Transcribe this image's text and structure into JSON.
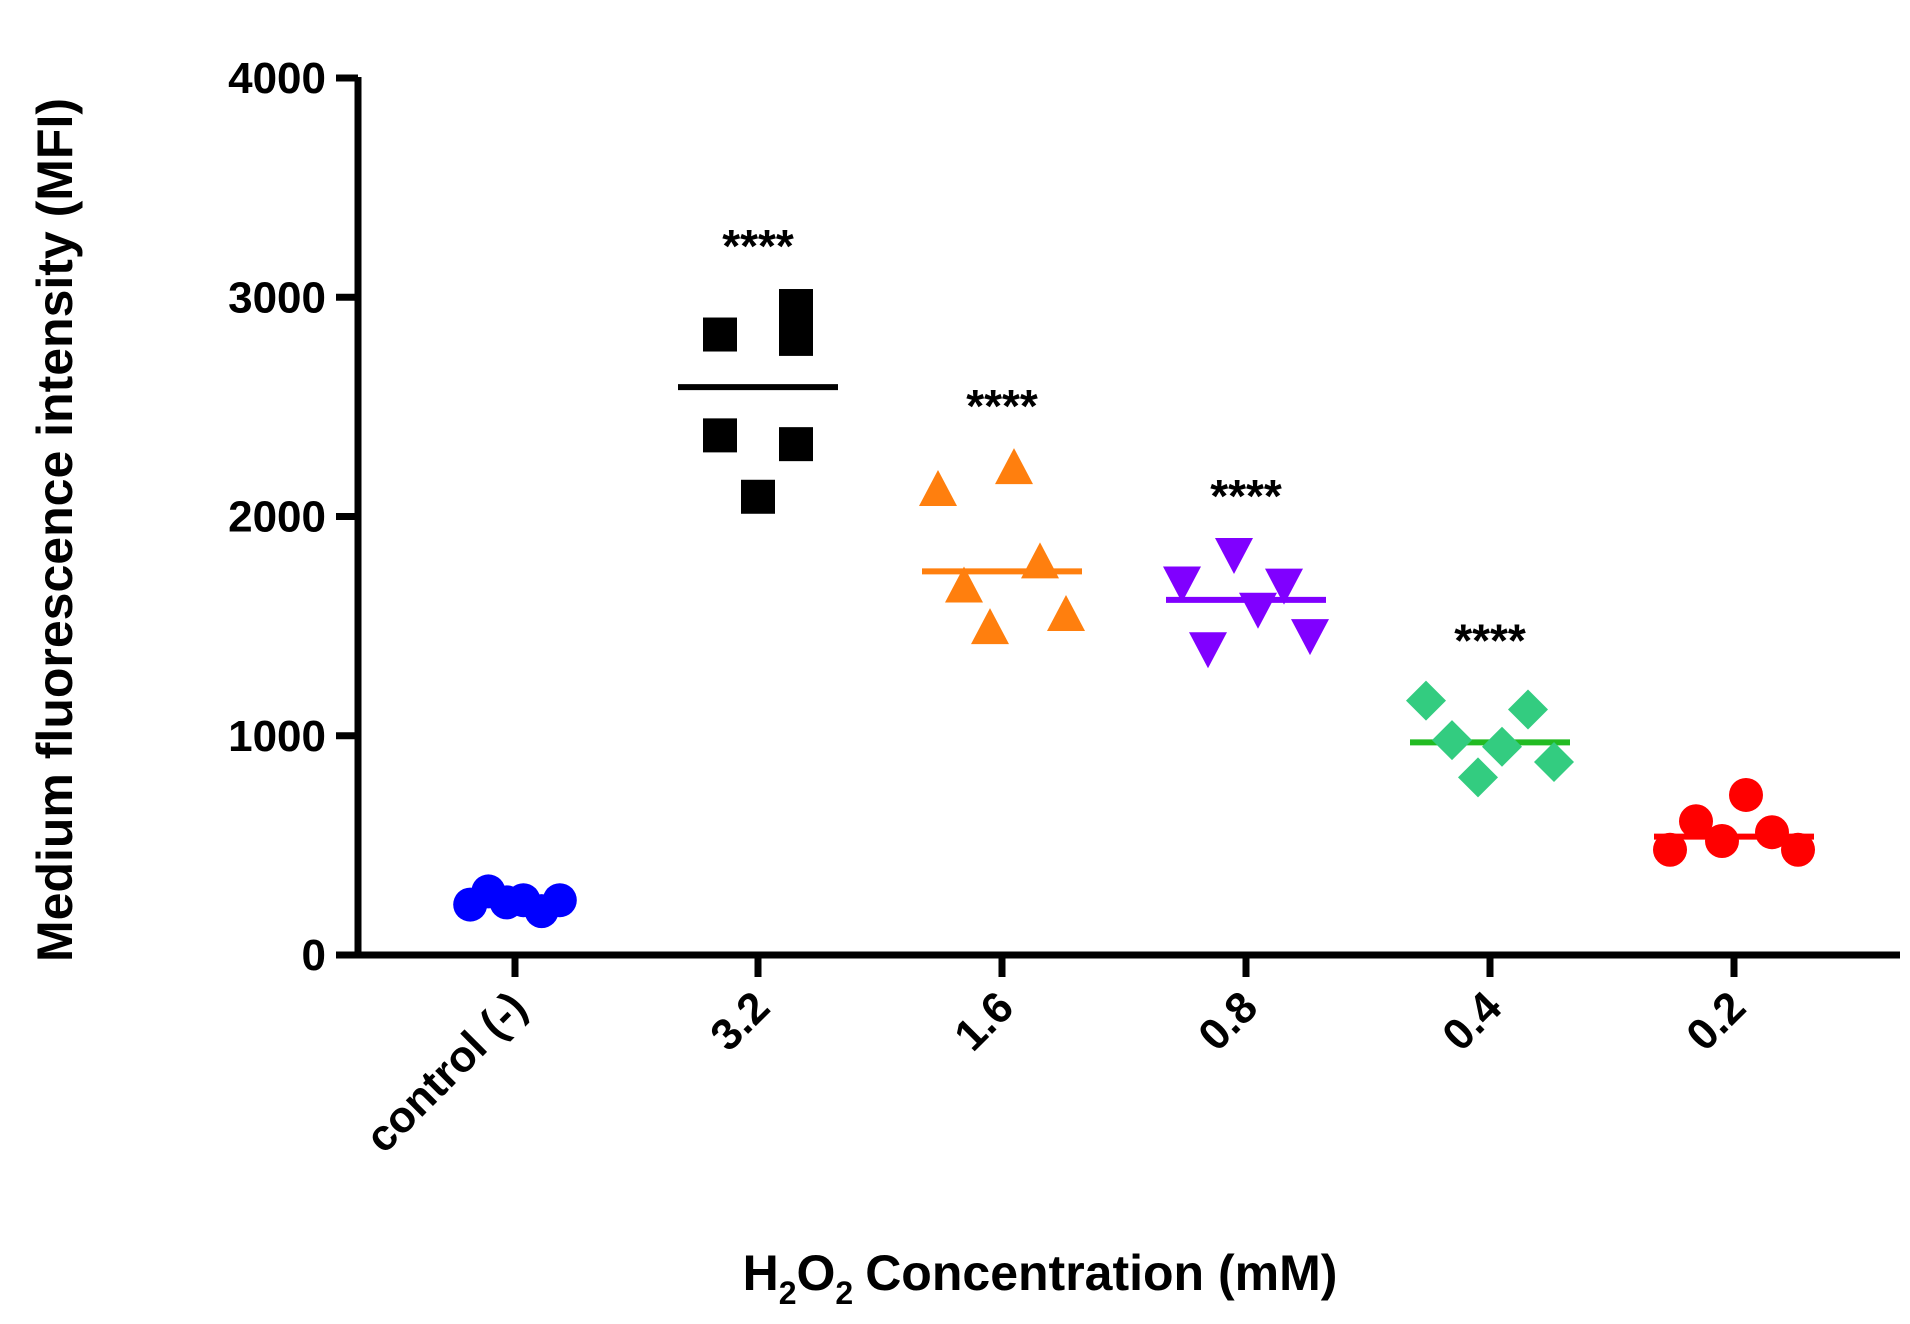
{
  "chart_data": {
    "type": "scatter",
    "subtype": "dot-plot-with-median",
    "title": "",
    "ylabel": "Medium fluorescence intensity (MFI)",
    "xlabel": {
      "prefix": "H",
      "sub1": "2",
      "mid": "O",
      "sub2": "2",
      "suffix": "Concentration  (mM)"
    },
    "ylim": [
      0,
      4000
    ],
    "yticks": [
      "0",
      "1000",
      "2000",
      "3000",
      "4000"
    ],
    "categories": [
      "control (-)",
      "3.2",
      "1.6",
      "0.8",
      "0.4",
      "0.2"
    ],
    "series": [
      {
        "name": "control (-)",
        "color": "#0000ff",
        "marker": "circle",
        "values": [
          230,
          290,
          240,
          250,
          200,
          250
        ],
        "median": 240,
        "significance": ""
      },
      {
        "name": "3.2",
        "color": "#000000",
        "marker": "square",
        "values": [
          2830,
          2370,
          2090,
          2960,
          2810,
          2330
        ],
        "median": 2590,
        "significance": "****"
      },
      {
        "name": "1.6",
        "color": "#ff7f0e",
        "marker": "triangle-up",
        "values": [
          2130,
          1690,
          1500,
          2230,
          1800,
          1560
        ],
        "median": 1750,
        "significance": "****"
      },
      {
        "name": "0.8",
        "color": "#8000ff",
        "marker": "triangle-down",
        "values": [
          1690,
          1390,
          1820,
          1570,
          1680,
          1450
        ],
        "median": 1620,
        "significance": "****"
      },
      {
        "name": "0.4",
        "color": "#33cc80",
        "marker": "diamond",
        "values": [
          1160,
          980,
          810,
          950,
          1120,
          880
        ],
        "median": 970,
        "significance": "****"
      },
      {
        "name": "0.2",
        "color": "#ff0000",
        "marker": "circle",
        "values": [
          480,
          610,
          520,
          730,
          560,
          480
        ],
        "median": 540,
        "significance": ""
      }
    ],
    "median_line_colors": [
      "#0000ff",
      "#000000",
      "#ff7f0e",
      "#8000ff",
      "#22bb22",
      "#ff0000"
    ]
  }
}
